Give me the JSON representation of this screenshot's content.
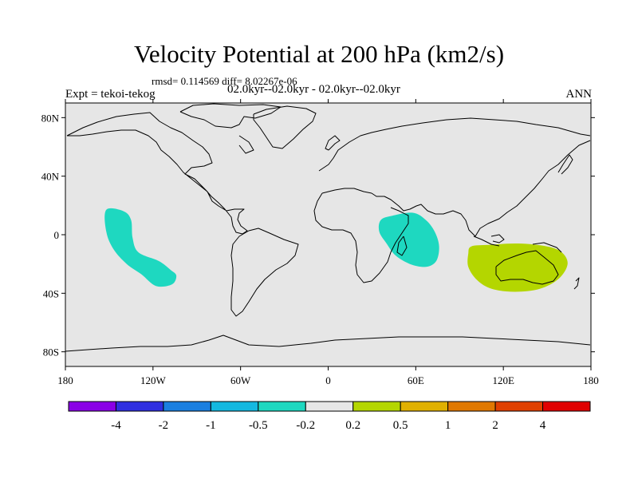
{
  "chart_data": {
    "type": "contour-map",
    "title": "Velocity Potential at 200 hPa (km2/s)",
    "stats_text": "rmsd= 0.114569 diff= 8.02267e-06",
    "left_label": "Expt = tekoi-tekog",
    "center_label": "02.0kyr--02.0kyr - 02.0kyr--02.0kyr",
    "right_label": "ANN",
    "x_axis": {
      "range": [
        -180,
        180
      ],
      "ticks": [
        -180,
        -120,
        -60,
        0,
        60,
        120,
        180
      ],
      "tick_labels": [
        "180",
        "120W",
        "60W",
        "0",
        "60E",
        "120E",
        "180"
      ]
    },
    "y_axis": {
      "range": [
        -90,
        90
      ],
      "ticks": [
        80,
        40,
        0,
        -40,
        -80
      ],
      "tick_labels": [
        "80N",
        "40N",
        "0",
        "40S",
        "80S"
      ]
    },
    "colorbar": {
      "levels": [
        "-4",
        "-2",
        "-1",
        "-0.5",
        "-0.2",
        "0.2",
        "0.5",
        "1",
        "2",
        "4"
      ],
      "colors": [
        "#8a00e6",
        "#2f2fe0",
        "#1a7fe0",
        "#14b8e0",
        "#1ed8c0",
        "#e6e6e6",
        "#b4d600",
        "#e0b000",
        "#e07800",
        "#e04000",
        "#e00000"
      ]
    },
    "anomaly_regions": [
      {
        "name": "east-pacific-negative",
        "level": "-0.5 to -0.2",
        "color": "#1ed8c0",
        "outline": [
          [
            -152,
            17
          ],
          [
            -140,
            16
          ],
          [
            -135,
            10
          ],
          [
            -134,
            -2
          ],
          [
            -130,
            -12
          ],
          [
            -116,
            -18
          ],
          [
            -108,
            -24
          ],
          [
            -104,
            -28
          ],
          [
            -107,
            -34
          ],
          [
            -118,
            -35
          ],
          [
            -128,
            -27
          ],
          [
            -138,
            -20
          ],
          [
            -147,
            -10
          ],
          [
            -152,
            2
          ]
        ]
      },
      {
        "name": "east-africa-negative",
        "level": "-0.5 to -0.2",
        "color": "#1ed8c0",
        "outline": [
          [
            36,
            10
          ],
          [
            44,
            13
          ],
          [
            58,
            15
          ],
          [
            67,
            10
          ],
          [
            73,
            2
          ],
          [
            76,
            -8
          ],
          [
            74,
            -18
          ],
          [
            67,
            -22
          ],
          [
            56,
            -20
          ],
          [
            46,
            -14
          ],
          [
            40,
            -6
          ],
          [
            35,
            2
          ]
        ]
      },
      {
        "name": "australia-positive",
        "level": "0.2 to 0.5",
        "color": "#b4d600",
        "outline": [
          [
            98,
            -8
          ],
          [
            110,
            -7
          ],
          [
            130,
            -6
          ],
          [
            150,
            -8
          ],
          [
            160,
            -12
          ],
          [
            164,
            -20
          ],
          [
            158,
            -30
          ],
          [
            145,
            -37
          ],
          [
            128,
            -39
          ],
          [
            112,
            -37
          ],
          [
            102,
            -31
          ],
          [
            96,
            -22
          ],
          [
            96,
            -13
          ]
        ]
      }
    ]
  }
}
